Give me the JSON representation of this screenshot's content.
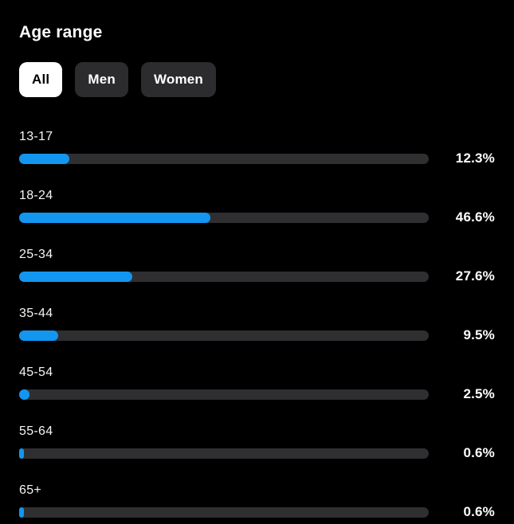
{
  "title": "Age range",
  "tabs": [
    {
      "label": "All",
      "active": true
    },
    {
      "label": "Men",
      "active": false
    },
    {
      "label": "Women",
      "active": false
    }
  ],
  "colors": {
    "background": "#000000",
    "bar_fill": "#1296f0",
    "bar_track": "#2f2f31",
    "active_tab_bg": "#ffffff",
    "inactive_tab_bg": "#2c2c2e",
    "text": "#ffffff"
  },
  "chart_data": {
    "type": "bar",
    "orientation": "horizontal",
    "title": "Age range",
    "categories": [
      "13-17",
      "18-24",
      "25-34",
      "35-44",
      "45-54",
      "55-64",
      "65+"
    ],
    "values": [
      12.3,
      46.6,
      27.6,
      9.5,
      2.5,
      0.6,
      0.6
    ],
    "value_labels": [
      "12.3%",
      "46.6%",
      "27.6%",
      "9.5%",
      "2.5%",
      "0.6%",
      "0.6%"
    ],
    "xlim": [
      0,
      100
    ],
    "grid": false,
    "legend": false
  }
}
